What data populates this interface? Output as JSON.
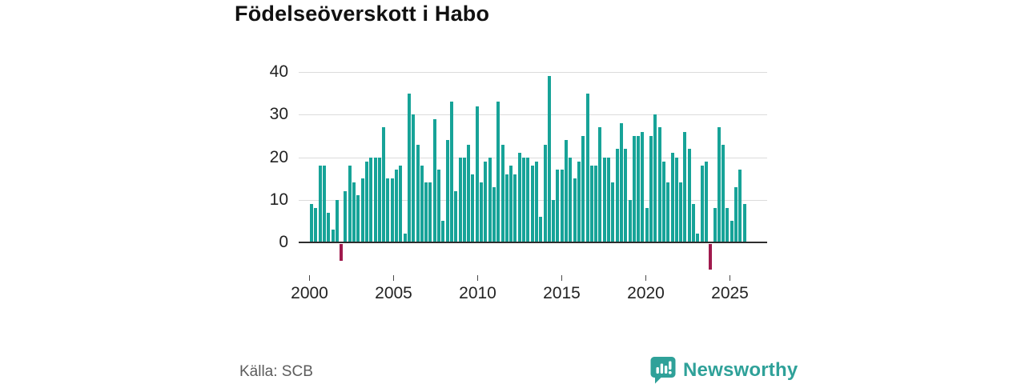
{
  "title": "Födelseöverskott i Habo",
  "source_label": "Källa: SCB",
  "brand": {
    "name": "Newsworthy",
    "color": "#2FA199"
  },
  "chart_data": {
    "type": "bar",
    "title": "Födelseöverskott i Habo",
    "frequency": "quarterly",
    "start_period": "2000 Q1",
    "end_period": "2025 Q3",
    "x_ticks": [
      "2000",
      "2005",
      "2010",
      "2015",
      "2020",
      "2025"
    ],
    "y_ticks": [
      "40",
      "30",
      "20",
      "10",
      "0"
    ],
    "ylim": [
      -8,
      42
    ],
    "grid": "horizontal",
    "bar_color": "#17A398",
    "negative_color": "#A01A4D",
    "values": [
      9,
      8,
      18,
      18,
      7,
      3,
      10,
      -4,
      12,
      18,
      14,
      11,
      15,
      19,
      20,
      20,
      20,
      27,
      15,
      15,
      17,
      18,
      2,
      35,
      30,
      23,
      18,
      14,
      14,
      29,
      17,
      5,
      24,
      33,
      12,
      20,
      20,
      23,
      16,
      32,
      14,
      19,
      20,
      13,
      33,
      23,
      16,
      18,
      16,
      21,
      20,
      20,
      18,
      19,
      6,
      23,
      39,
      10,
      17,
      17,
      24,
      20,
      15,
      19,
      25,
      35,
      18,
      18,
      27,
      20,
      20,
      14,
      22,
      28,
      22,
      10,
      25,
      25,
      26,
      8,
      25,
      30,
      27,
      19,
      14,
      21,
      20,
      14,
      26,
      22,
      9,
      2,
      18,
      19,
      -6,
      8,
      27,
      23,
      8,
      5,
      13,
      17,
      9
    ]
  }
}
